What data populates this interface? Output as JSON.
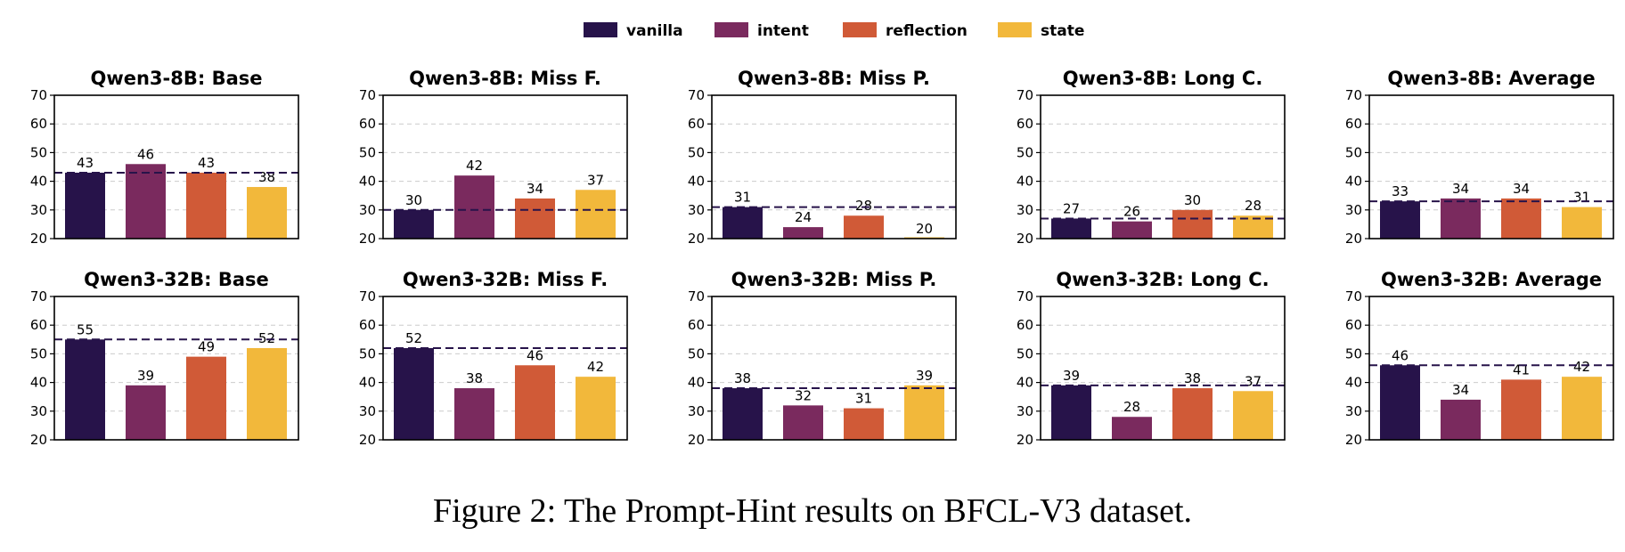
{
  "colors": {
    "vanilla": "#27134a",
    "intent": "#7a2a5e",
    "reflection": "#d05a37",
    "state": "#f2b83b",
    "baseline_line": "#27134a",
    "grid": "#cccccc"
  },
  "legend": {
    "placement": "top-center",
    "items": [
      "vanilla",
      "intent",
      "reflection",
      "state"
    ]
  },
  "caption": "Figure 2: The Prompt-Hint results on BFCL-V3 dataset.",
  "chart_data": [
    {
      "type": "bar",
      "title": "Qwen3-8B: Base",
      "categories": [
        "vanilla",
        "intent",
        "reflection",
        "state"
      ],
      "values": [
        43,
        46,
        43,
        38
      ],
      "baseline": 43,
      "ylim": [
        20,
        70
      ],
      "yticks": [
        "20",
        "30",
        "40",
        "50",
        "60",
        "70"
      ],
      "grid": true
    },
    {
      "type": "bar",
      "title": "Qwen3-8B: Miss F.",
      "categories": [
        "vanilla",
        "intent",
        "reflection",
        "state"
      ],
      "values": [
        30,
        42,
        34,
        37
      ],
      "baseline": 30,
      "ylim": [
        20,
        70
      ],
      "yticks": [
        "20",
        "30",
        "40",
        "50",
        "60",
        "70"
      ],
      "grid": true
    },
    {
      "type": "bar",
      "title": "Qwen3-8B: Miss P.",
      "categories": [
        "vanilla",
        "intent",
        "reflection",
        "state"
      ],
      "values": [
        31,
        24,
        28,
        20
      ],
      "baseline": 31,
      "ylim": [
        20,
        70
      ],
      "yticks": [
        "20",
        "30",
        "40",
        "50",
        "60",
        "70"
      ],
      "grid": true
    },
    {
      "type": "bar",
      "title": "Qwen3-8B: Long C.",
      "categories": [
        "vanilla",
        "intent",
        "reflection",
        "state"
      ],
      "values": [
        27,
        26,
        30,
        28
      ],
      "baseline": 27,
      "ylim": [
        20,
        70
      ],
      "yticks": [
        "20",
        "30",
        "40",
        "50",
        "60",
        "70"
      ],
      "grid": true
    },
    {
      "type": "bar",
      "title": "Qwen3-8B: Average",
      "categories": [
        "vanilla",
        "intent",
        "reflection",
        "state"
      ],
      "values": [
        33,
        34,
        34,
        31
      ],
      "baseline": 33,
      "ylim": [
        20,
        70
      ],
      "yticks": [
        "20",
        "30",
        "40",
        "50",
        "60",
        "70"
      ],
      "grid": true
    },
    {
      "type": "bar",
      "title": "Qwen3-32B: Base",
      "categories": [
        "vanilla",
        "intent",
        "reflection",
        "state"
      ],
      "values": [
        55,
        39,
        49,
        52
      ],
      "baseline": 55,
      "ylim": [
        20,
        70
      ],
      "yticks": [
        "20",
        "30",
        "40",
        "50",
        "60",
        "70"
      ],
      "grid": true
    },
    {
      "type": "bar",
      "title": "Qwen3-32B: Miss F.",
      "categories": [
        "vanilla",
        "intent",
        "reflection",
        "state"
      ],
      "values": [
        52,
        38,
        46,
        42
      ],
      "baseline": 52,
      "ylim": [
        20,
        70
      ],
      "yticks": [
        "20",
        "30",
        "40",
        "50",
        "60",
        "70"
      ],
      "grid": true
    },
    {
      "type": "bar",
      "title": "Qwen3-32B: Miss P.",
      "categories": [
        "vanilla",
        "intent",
        "reflection",
        "state"
      ],
      "values": [
        38,
        32,
        31,
        39
      ],
      "baseline": 38,
      "ylim": [
        20,
        70
      ],
      "yticks": [
        "20",
        "30",
        "40",
        "50",
        "60",
        "70"
      ],
      "grid": true
    },
    {
      "type": "bar",
      "title": "Qwen3-32B: Long C.",
      "categories": [
        "vanilla",
        "intent",
        "reflection",
        "state"
      ],
      "values": [
        39,
        28,
        38,
        37
      ],
      "baseline": 39,
      "ylim": [
        20,
        70
      ],
      "yticks": [
        "20",
        "30",
        "40",
        "50",
        "60",
        "70"
      ],
      "grid": true
    },
    {
      "type": "bar",
      "title": "Qwen3-32B: Average",
      "categories": [
        "vanilla",
        "intent",
        "reflection",
        "state"
      ],
      "values": [
        46,
        34,
        41,
        42
      ],
      "baseline": 46,
      "ylim": [
        20,
        70
      ],
      "yticks": [
        "20",
        "30",
        "40",
        "50",
        "60",
        "70"
      ],
      "grid": true
    }
  ]
}
